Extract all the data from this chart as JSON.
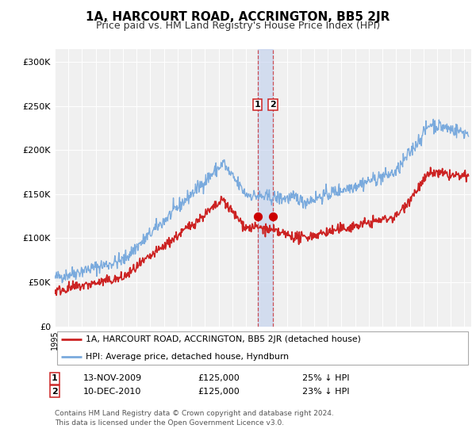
{
  "title": "1A, HARCOURT ROAD, ACCRINGTON, BB5 2JR",
  "subtitle": "Price paid vs. HM Land Registry's House Price Index (HPI)",
  "title_fontsize": 11,
  "subtitle_fontsize": 9,
  "background_color": "#ffffff",
  "plot_bg_color": "#f0f0f0",
  "grid_color": "#ffffff",
  "hpi_color": "#7aaadd",
  "price_color": "#cc2222",
  "marker_color": "#cc0000",
  "sale1_date": 2009.87,
  "sale2_date": 2010.95,
  "sale1_price": 125000,
  "sale2_price": 125000,
  "yticks": [
    0,
    50000,
    100000,
    150000,
    200000,
    250000,
    300000
  ],
  "ytick_labels": [
    "£0",
    "£50K",
    "£100K",
    "£150K",
    "£200K",
    "£250K",
    "£300K"
  ],
  "xmin": 1995.0,
  "xmax": 2025.5,
  "ymin": 0,
  "ymax": 315000,
  "legend_label1": "1A, HARCOURT ROAD, ACCRINGTON, BB5 2JR (detached house)",
  "legend_label2": "HPI: Average price, detached house, Hyndburn",
  "transaction1_date": "13-NOV-2009",
  "transaction1_price": "£125,000",
  "transaction1_hpi": "25% ↓ HPI",
  "transaction2_date": "10-DEC-2010",
  "transaction2_price": "£125,000",
  "transaction2_hpi": "23% ↓ HPI",
  "footer1": "Contains HM Land Registry data © Crown copyright and database right 2024.",
  "footer2": "This data is licensed under the Open Government Licence v3.0."
}
